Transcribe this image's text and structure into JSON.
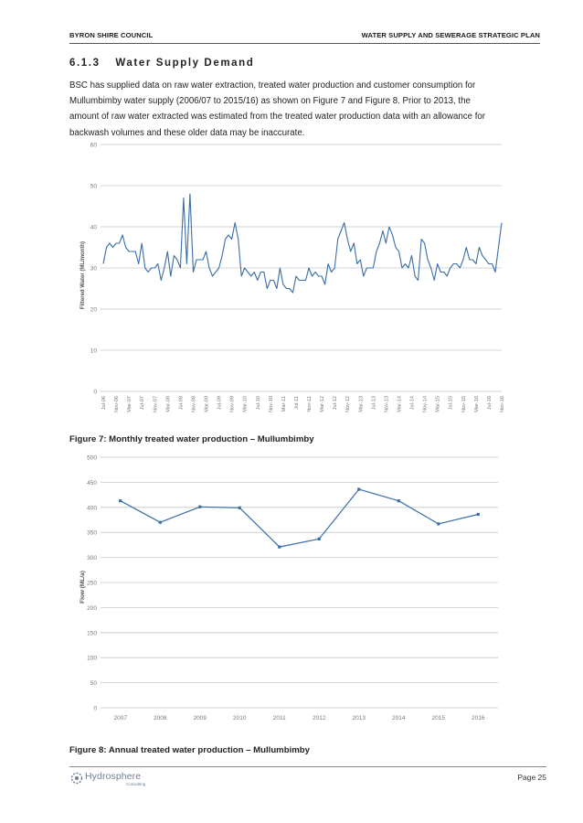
{
  "header": {
    "left": "BYRON SHIRE COUNCIL",
    "right": "WATER SUPPLY AND SEWERAGE STRATEGIC PLAN"
  },
  "section": {
    "number": "6.1.3",
    "title": "Water Supply Demand"
  },
  "paragraph": [
    "BSC has supplied data on raw water extraction, treated water production and customer consumption for",
    "Mullumbimby water supply (2006/07 to 2015/16) as shown on Figure 7 and Figure 8. Prior to 2013, the",
    "amount of raw water extracted was estimated from the treated water production data with an allowance for",
    "backwash volumes and these older data may be inaccurate."
  ],
  "figure7_caption": "Figure 7: Monthly treated water production – Mullumbimby",
  "figure8_caption": "Figure 8: Annual treated water production – Mullumbimby",
  "footer": {
    "logo_text": "Hydrosphere",
    "logo_sub": "Consulting",
    "page": "Page 25"
  },
  "colors": {
    "series": "#3a6ea8",
    "grid": "#c8c8c8",
    "axis_text": "#777777"
  },
  "chart_data": [
    {
      "type": "line",
      "title": "",
      "xlabel": "",
      "ylabel": "Filtered Water (ML/month)",
      "ylim": [
        0,
        60
      ],
      "yticks": [
        0,
        10,
        20,
        30,
        40,
        50,
        60
      ],
      "grid": true,
      "x_tick_labels": [
        "Jul-06",
        "Nov-06",
        "Mar-07",
        "Jul-07",
        "Nov-07",
        "Mar-08",
        "Jul-08",
        "Nov-08",
        "Mar-09",
        "Jul-09",
        "Nov-09",
        "Mar-10",
        "Jul-10",
        "Nov-10",
        "Mar-11",
        "Jul-11",
        "Nov-11",
        "Mar-12",
        "Jul-12",
        "Nov-12",
        "Mar-13",
        "Jul-13",
        "Nov-13",
        "Mar-14",
        "Jul-14",
        "Nov-14",
        "Mar-15",
        "Jul-15",
        "Nov-15",
        "Mar-16",
        "Jul-16",
        "Nov-16"
      ],
      "x_start": "Jul-06",
      "x_interval": "monthly",
      "series": [
        {
          "values": [
            31,
            35,
            36,
            35,
            36,
            36,
            38,
            35,
            34,
            34,
            34,
            31,
            36,
            30,
            29,
            30,
            30,
            31,
            27,
            30,
            34,
            28,
            33,
            32,
            30,
            47,
            31,
            48,
            29,
            32,
            32,
            32,
            34,
            30,
            28,
            29,
            30,
            33,
            37,
            38,
            37,
            41,
            37,
            28,
            30,
            29,
            28,
            29,
            27,
            29,
            29,
            25,
            27,
            27,
            25,
            30,
            26,
            25,
            25,
            24,
            28,
            27,
            27,
            27,
            30,
            28,
            29,
            28,
            28,
            26,
            31,
            29,
            30,
            37,
            39,
            41,
            37,
            34,
            36,
            31,
            32,
            28,
            30,
            30,
            30,
            34,
            36,
            39,
            36,
            40,
            38,
            35,
            34,
            30,
            31,
            30,
            33,
            28,
            27,
            37,
            36,
            32,
            30,
            27,
            31,
            29,
            29,
            28,
            30,
            31,
            31,
            30,
            32,
            35,
            32,
            32,
            31,
            35,
            33,
            32,
            31,
            31,
            29,
            35,
            41
          ]
        }
      ]
    },
    {
      "type": "line",
      "title": "",
      "xlabel": "",
      "ylabel": "Flow (ML/a)",
      "ylim": [
        0,
        500
      ],
      "yticks": [
        0,
        50,
        100,
        150,
        200,
        250,
        300,
        350,
        400,
        450,
        500
      ],
      "grid": true,
      "categories": [
        "2007",
        "2008",
        "2009",
        "2010",
        "2011",
        "2012",
        "2013",
        "2014",
        "2015",
        "2016"
      ],
      "series": [
        {
          "values": [
            413,
            370,
            401,
            399,
            321,
            337,
            436,
            413,
            367,
            386
          ]
        }
      ]
    }
  ]
}
